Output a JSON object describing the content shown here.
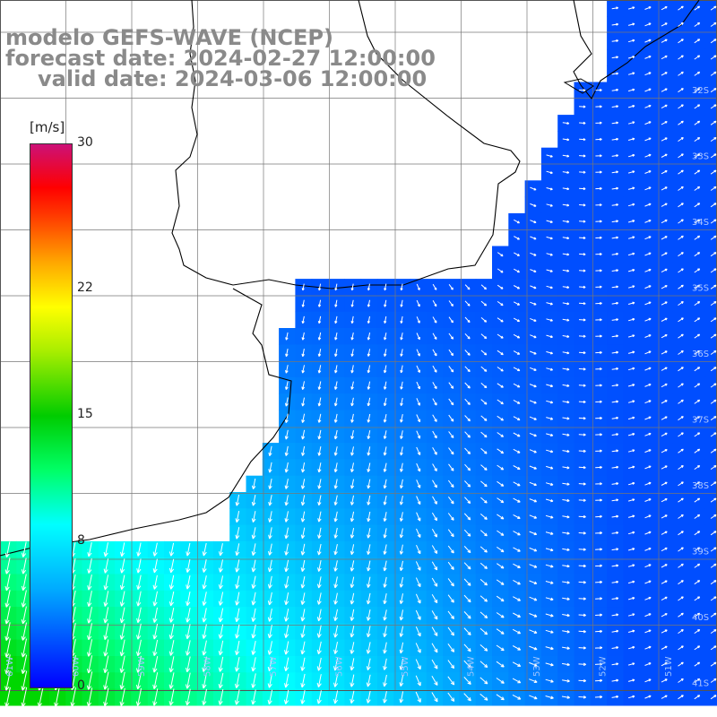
{
  "title": {
    "line1": "modelo GEFS-WAVE (NCEP)",
    "line2": "forecast date: 2024-02-27 12:00:00",
    "line3": "valid date: 2024-03-06 12:00:00"
  },
  "colorbar": {
    "unit": "[m/s]",
    "ticks": [
      {
        "label": "30",
        "value": 30
      },
      {
        "label": "22",
        "value": 22
      },
      {
        "label": "15",
        "value": 15
      },
      {
        "label": "8",
        "value": 8
      },
      {
        "label": "0",
        "value": 0
      }
    ],
    "min": 0,
    "max": 30
  },
  "grid": {
    "lat_labels": [
      "32S",
      "33S",
      "34S",
      "35S",
      "36S",
      "37S",
      "38S",
      "39S",
      "40S",
      "41S"
    ],
    "lon_labels": [
      "61W",
      "60W",
      "59W",
      "58W",
      "57W",
      "56W",
      "55W",
      "54W",
      "53W",
      "52W",
      "51W"
    ]
  },
  "colors": {
    "land": "#ffffff",
    "coast": "#000000",
    "grid": "#777777",
    "arrow": "#ffffff",
    "title": "#8a8a8a"
  }
}
